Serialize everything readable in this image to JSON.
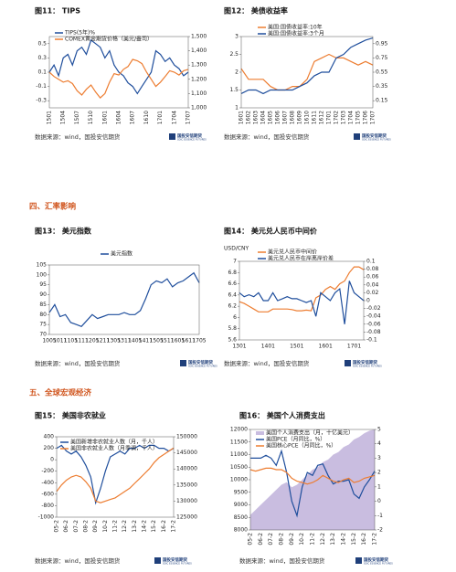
{
  "sections": [
    "四、汇率影响",
    "五、全球宏观经济"
  ],
  "logo": {
    "name": "国投安信期货",
    "english": "SDIC ESSENCE FUTURES"
  },
  "chart_data": [
    {
      "type": "line",
      "title": "图11： TIPS",
      "source": "数据来源：wind，国投安信期货",
      "categories": [
        "1501",
        null,
        null,
        "1504",
        null,
        null,
        "1507",
        null,
        null,
        "1510",
        null,
        null,
        "1601",
        null,
        null,
        "1604",
        null,
        null,
        "1607",
        null,
        null,
        "1610",
        null,
        null,
        "1701",
        null,
        null,
        "1704",
        null,
        null,
        "1707"
      ],
      "series": [
        {
          "name": "TIPS(5年)%",
          "color": "#1f4e9c",
          "values": [
            0.1,
            0.2,
            0.05,
            0.3,
            0.35,
            0.2,
            0.4,
            0.45,
            0.35,
            0.55,
            0.5,
            0.45,
            0.3,
            0.4,
            0.2,
            0.1,
            0.05,
            -0.05,
            -0.1,
            -0.2,
            -0.1,
            0,
            0.1,
            0.4,
            0.35,
            0.25,
            0.3,
            0.2,
            0.15,
            0.05,
            0.1
          ]
        },
        {
          "name": "COMEX黄金期货价格（美元/盎司）",
          "color": "#ed7d31",
          "axis": "y2",
          "values": [
            1250,
            1220,
            1200,
            1180,
            1190,
            1170,
            1120,
            1090,
            1130,
            1160,
            1110,
            1070,
            1100,
            1180,
            1240,
            1230,
            1270,
            1290,
            1340,
            1330,
            1310,
            1250,
            1200,
            1150,
            1180,
            1220,
            1260,
            1250,
            1230,
            1260,
            1270
          ]
        }
      ],
      "ylim": [
        -0.4,
        0.6
      ],
      "yticks": [
        -0.3,
        -0.1,
        0.1,
        0.3,
        0.5
      ],
      "y2lim": [
        1000,
        1500
      ],
      "y2ticks": [
        {
          "value": 1000,
          "label": "1,000"
        },
        {
          "value": 1100,
          "label": "1,100"
        },
        {
          "value": 1200,
          "label": "1,200"
        },
        {
          "value": 1300,
          "label": "1,300"
        },
        {
          "value": 1400,
          "label": "1,400"
        },
        {
          "value": 1500,
          "label": "1,500"
        }
      ]
    },
    {
      "type": "line",
      "title": "图12： 美债收益率",
      "source": "数据来源：wind，国投安信期货",
      "categories": [
        "1601",
        "1602",
        "1603",
        "1604",
        "1605",
        "1606",
        "1607",
        "1608",
        "1609",
        "1610",
        "1611",
        "1612",
        "1701",
        "1702",
        "1703",
        "1704",
        "1705",
        "1706",
        "1707"
      ],
      "series": [
        {
          "name": "美国:国债收益率:10年",
          "color": "#ed7d31",
          "values": [
            2.1,
            1.8,
            1.8,
            1.8,
            1.6,
            1.5,
            1.5,
            1.6,
            1.6,
            1.8,
            2.3,
            2.4,
            2.5,
            2.4,
            2.4,
            2.3,
            2.2,
            2.3,
            2.2
          ]
        },
        {
          "name": "美国:国债收益率:3个月",
          "color": "#1f4e9c",
          "axis": "y2",
          "values": [
            0.25,
            0.3,
            0.3,
            0.25,
            0.3,
            0.3,
            0.3,
            0.3,
            0.35,
            0.4,
            0.5,
            0.55,
            0.55,
            0.75,
            0.8,
            0.9,
            0.95,
            1.0,
            1.03
          ]
        }
      ],
      "ylim": [
        1,
        3
      ],
      "yticks": [
        1,
        1.5,
        2,
        2.5,
        3
      ],
      "y2lim": [
        0.05,
        1.05
      ],
      "y2ticks": [
        0.15,
        0.35,
        0.55,
        0.75,
        0.95
      ]
    },
    {
      "type": "line",
      "title": "图13： 美元指数",
      "source": "数据来源：wind，国投安信期货",
      "categories": [
        "1005",
        null,
        "1011",
        null,
        "1105",
        null,
        "1111",
        null,
        "1205",
        null,
        "1211",
        null,
        "1305",
        null,
        "1311",
        null,
        "1405",
        null,
        "1411",
        null,
        "1505",
        null,
        "1511",
        null,
        "1605",
        null,
        "1611",
        null,
        "1705"
      ],
      "series": [
        {
          "name": "美元指数",
          "color": "#1f4e9c",
          "values": [
            81,
            85,
            79,
            80,
            76,
            75,
            74,
            77,
            80,
            78,
            79,
            80,
            80,
            80,
            81,
            80,
            80,
            82,
            88,
            95,
            97,
            96,
            98,
            94,
            96,
            97,
            99,
            101,
            96
          ]
        }
      ],
      "ylim": [
        70,
        105
      ],
      "yticks": [
        70,
        75,
        80,
        85,
        90,
        95,
        100,
        105
      ]
    },
    {
      "type": "line",
      "title": "图14： 美元兑人民币中间价",
      "ylabel": "USD/CNY",
      "source": "数据来源：wind，国投安信期货",
      "categories": [
        "1301",
        null,
        null,
        null,
        null,
        null,
        "1401",
        null,
        null,
        null,
        null,
        null,
        "1501",
        null,
        null,
        null,
        null,
        null,
        "1601",
        null,
        null,
        null,
        null,
        null,
        "1701",
        null,
        null
      ],
      "series": [
        {
          "name": "美元兑人民币中间价",
          "color": "#ed7d31",
          "values": [
            6.28,
            6.25,
            6.2,
            6.15,
            6.1,
            6.1,
            6.1,
            6.15,
            6.15,
            6.15,
            6.15,
            6.14,
            6.12,
            6.12,
            6.13,
            6.12,
            6.35,
            6.4,
            6.5,
            6.55,
            6.5,
            6.6,
            6.65,
            6.8,
            6.9,
            6.9,
            6.85
          ]
        },
        {
          "name": "美元兑人民币在岸离岸价差",
          "color": "#1f4e9c",
          "axis": "y2",
          "values": [
            0.02,
            0.01,
            0.015,
            0.01,
            0.02,
            0,
            0,
            0.02,
            0,
            0.005,
            0.01,
            0.005,
            0.005,
            0,
            -0.005,
            0,
            -0.04,
            0.02,
            0.01,
            0,
            0.02,
            0.03,
            -0.06,
            0.05,
            0.02,
            0.01,
            0
          ]
        }
      ],
      "ylim": [
        5.6,
        7
      ],
      "yticks": [
        5.6,
        5.8,
        6,
        6.2,
        6.4,
        6.6,
        6.8,
        7
      ],
      "y2lim": [
        -0.1,
        0.1
      ],
      "y2ticks": [
        -0.1,
        -0.08,
        -0.06,
        -0.04,
        -0.02,
        0,
        0.02,
        0.04,
        0.06,
        0.08,
        0.1
      ]
    },
    {
      "type": "line",
      "title": "图15： 美国非农就业",
      "source": "数据来源：wind，国投安信期货",
      "categories": [
        "05-2",
        null,
        "06-2",
        null,
        "07-2",
        null,
        "08-2",
        null,
        "09-2",
        null,
        "10-2",
        null,
        "11-2",
        null,
        "12-2",
        null,
        "13-2",
        null,
        "14-2",
        null,
        "15-2",
        null,
        "16-2",
        null,
        "17-2"
      ],
      "series": [
        {
          "name": "美国新增非农就业人数（月，千人）",
          "color": "#1f4e9c",
          "values": [
            200,
            250,
            150,
            100,
            150,
            50,
            -100,
            -300,
            -750,
            -500,
            -200,
            50,
            100,
            150,
            100,
            200,
            200,
            250,
            200,
            250,
            250,
            200,
            200,
            150,
            200
          ]
        },
        {
          "name": "美国非农就业人数（月季调，千人）",
          "color": "#ed7d31",
          "axis": "y2",
          "values": [
            133000,
            135000,
            136500,
            137500,
            138000,
            137500,
            136000,
            134000,
            130000,
            129500,
            130000,
            130500,
            131000,
            132000,
            133000,
            134000,
            135500,
            137000,
            138500,
            140000,
            142000,
            143500,
            144500,
            145500,
            146500
          ]
        }
      ],
      "ylim": [
        -1000,
        400
      ],
      "yticks": [
        -1000,
        -800,
        -600,
        -400,
        -200,
        0,
        200,
        400
      ],
      "y2lim": [
        125000,
        150000
      ],
      "y2ticks": [
        125000,
        130000,
        135000,
        140000,
        145000,
        150000
      ]
    },
    {
      "type": "line",
      "title": "图16： 美国个人消费支出",
      "source": "数据来源：wind，国投安信期货",
      "categories": [
        "05-2",
        null,
        "06-2",
        null,
        "07-2",
        null,
        "08-2",
        null,
        "09-2",
        null,
        "10-2",
        null,
        "11-2",
        null,
        "12-2",
        null,
        "13-2",
        null,
        "14-2",
        null,
        "15-2",
        null,
        "16-2",
        null,
        "17-2"
      ],
      "series": [
        {
          "name": "美国个人消费支出（月，十亿美元）",
          "color": "#c9bde0",
          "type": "area",
          "values": [
            8600,
            8800,
            9000,
            9200,
            9400,
            9600,
            9800,
            9900,
            9700,
            9800,
            10000,
            10200,
            10400,
            10500,
            10700,
            10800,
            11000,
            11100,
            11300,
            11400,
            11600,
            11700,
            11850,
            11950,
            12000
          ]
        },
        {
          "name": "美国PCE（月同比，%）",
          "color": "#1f4e9c",
          "axis": "y2",
          "values": [
            3,
            3,
            3,
            3.2,
            3,
            2.5,
            3.5,
            2,
            0,
            -1,
            1,
            2,
            1.8,
            2.5,
            2.6,
            1.8,
            1.2,
            1.4,
            1.4,
            1.5,
            0.5,
            0.2,
            1,
            1.5,
            2.1
          ]
        },
        {
          "name": "美国核心PCE（月同比，%）",
          "color": "#ed7d31",
          "axis": "y2",
          "values": [
            2.2,
            2.1,
            2.2,
            2.3,
            2.3,
            2.2,
            2.2,
            2,
            1.6,
            1.4,
            1.3,
            1.2,
            1.3,
            1.5,
            1.8,
            1.6,
            1.4,
            1.3,
            1.5,
            1.6,
            1.3,
            1.4,
            1.6,
            1.7,
            1.8
          ]
        }
      ],
      "ylim": [
        8000,
        12000
      ],
      "yticks": [
        8000,
        8500,
        9000,
        9500,
        10000,
        10500,
        11000,
        11500,
        12000
      ],
      "y2lim": [
        -2,
        5
      ],
      "y2ticks": [
        -2,
        -1,
        0,
        1,
        2,
        3,
        4,
        5
      ]
    }
  ]
}
